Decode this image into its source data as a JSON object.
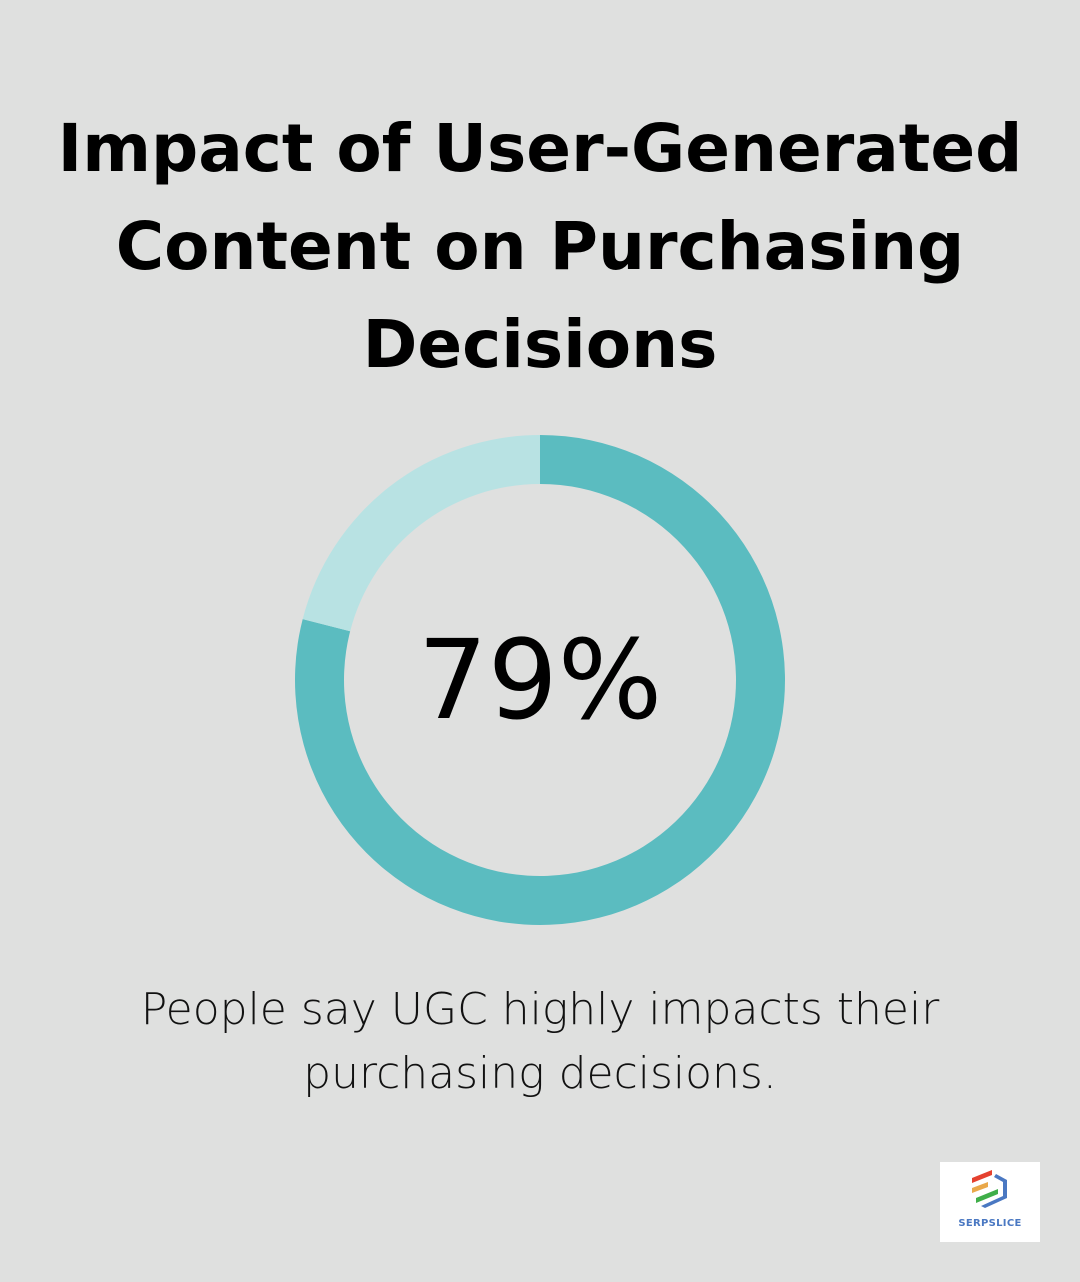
{
  "title": "Impact of User-Generated Content on Purchasing Decisions",
  "chart_data": {
    "type": "pie",
    "variant": "donut",
    "values": [
      79,
      21
    ],
    "center_label": "79%",
    "colors": [
      "#5bbcc0",
      "#b8e2e3"
    ],
    "caption": "People say UGC highly impacts their purchasing decisions."
  },
  "logo": {
    "text": "SERPSLICE",
    "colors": [
      "#e5412f",
      "#e9a84a",
      "#3fae49",
      "#4a78c2"
    ]
  }
}
